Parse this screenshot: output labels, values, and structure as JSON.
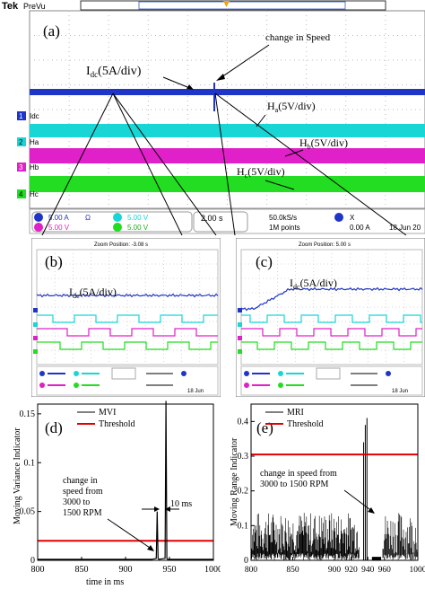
{
  "panel_a": {
    "brand": "Tek",
    "mode": "PreVu",
    "label": "(a)",
    "annotation_speed": "change in Speed",
    "idc_label": "I",
    "idc_sub": "dc",
    "idc_rest": "(5A/div)",
    "ha_label": "H",
    "ha_sub": "a",
    "ha_rest": "(5V/div)",
    "hb_label": "H",
    "hb_sub": "b",
    "hb_rest": "(5V/div)",
    "hc_label": "H",
    "hc_sub": "c",
    "hc_rest": "(5V/div)",
    "ch1": "1",
    "ch1_name": "Idc",
    "ch2": "2",
    "ch2_name": "Ha",
    "ch3": "3",
    "ch3_name": "Hb",
    "ch4": "4",
    "ch4_name": "Hc",
    "status": {
      "c1": "5.00 A",
      "c1_ohm": "Ω",
      "c2": "5.00 V",
      "c3": "5.00 V",
      "c4": "5.00 V",
      "timebase": "2.00 s",
      "rate": "50.0kS/s",
      "points": "1M points",
      "trig": "0.00 A",
      "date": "18 Jun 20"
    },
    "colors": {
      "idc": "#1f35c8",
      "ha": "#19d6d6",
      "hb": "#e020c8",
      "hc": "#22dd22"
    }
  },
  "panel_b": {
    "label": "(b)",
    "idc_label": "I",
    "idc_sub": "dc",
    "idc_rest": "(5A/div)",
    "header": "Zoom Position: -3.08 s",
    "foot": "18 Jun"
  },
  "panel_c": {
    "label": "(c)",
    "idc_label": "I",
    "idc_sub": "dc",
    "idc_rest": "(5A/div)",
    "header": "Zoom Position: 5.00 s",
    "foot": "18 Jun"
  },
  "panel_d": {
    "label": "(d)",
    "annotation": [
      "change in",
      "speed from",
      "3000 to",
      "1500 RPM"
    ],
    "ms_label": "10 ms"
  },
  "panel_e": {
    "label": "(e)",
    "annotation": [
      "change in speed from",
      "3000 to 1500 RPM"
    ]
  },
  "chart_data": [
    {
      "type": "line",
      "title": "",
      "xlabel": "time in ms",
      "ylabel": "Moving Variance Indicator",
      "xlim": [
        800,
        1000
      ],
      "ylim": [
        0,
        0.16
      ],
      "xticks": [
        800,
        850,
        900,
        950,
        1000
      ],
      "yticks": [
        0,
        0.05,
        0.1,
        0.15
      ],
      "legend_position": "top-left",
      "series": [
        {
          "name": "MVI",
          "color": "#000000",
          "x": [
            800,
            930,
            935,
            936,
            937,
            938,
            945,
            946,
            947,
            948,
            1000
          ],
          "y": [
            0.001,
            0.001,
            0.002,
            0.05,
            0.002,
            0.001,
            0.002,
            0.165,
            0.002,
            0.001,
            0.001
          ]
        },
        {
          "name": "Threshold",
          "color": "#e00000",
          "x": [
            800,
            1000
          ],
          "y": [
            0.02,
            0.02
          ]
        }
      ]
    },
    {
      "type": "line",
      "title": "",
      "xlabel": "",
      "ylabel": "Moving Range Indicator",
      "xlim": [
        800,
        1000
      ],
      "ylim": [
        0,
        0.45
      ],
      "xticks": [
        800,
        850,
        900,
        920,
        940,
        960,
        1000
      ],
      "yticks": [
        0,
        0.1,
        0.2,
        0.3,
        0.4
      ],
      "legend_position": "top-left",
      "noise_band": {
        "x_from": 800,
        "x_to": 930,
        "y_low": 0.02,
        "y_high": 0.14
      },
      "spikes": {
        "x": [
          935,
          937,
          939
        ],
        "y": [
          0.34,
          0.39,
          0.41
        ]
      },
      "series": [
        {
          "name": "MRI",
          "color": "#000000"
        },
        {
          "name": "Threshold",
          "color": "#e00000",
          "x": [
            800,
            1000
          ],
          "y": [
            0.305,
            0.305
          ]
        }
      ]
    }
  ]
}
